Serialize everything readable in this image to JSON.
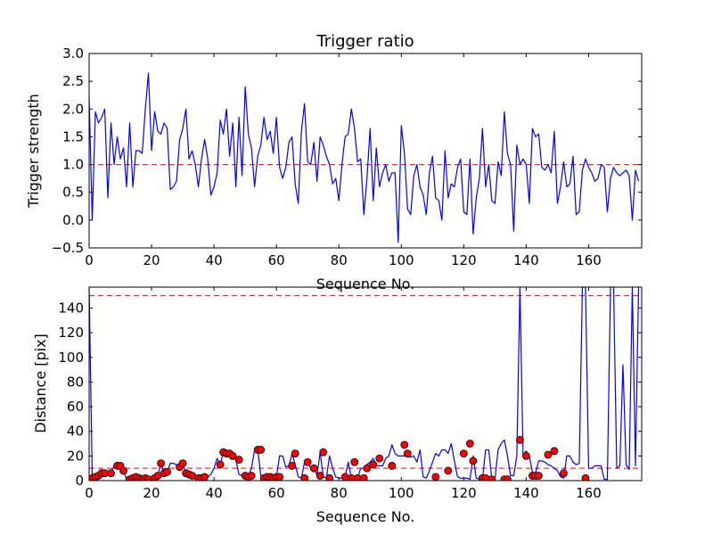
{
  "chart_data": [
    {
      "type": "line",
      "title": "Trigger ratio",
      "xlabel": "Sequence No.",
      "ylabel": "Trigger strength",
      "xlim": [
        0,
        177
      ],
      "ylim": [
        -0.5,
        3.0
      ],
      "xticks": [
        0,
        20,
        40,
        60,
        80,
        100,
        120,
        140,
        160
      ],
      "yticks": [
        -0.5,
        0.0,
        0.5,
        1.0,
        1.5,
        2.0,
        2.5,
        3.0
      ],
      "xtick_labels": [
        "0",
        "20",
        "40",
        "60",
        "80",
        "100",
        "120",
        "140",
        "160"
      ],
      "ytick_labels": [
        "−0.5",
        "0.0",
        "0.5",
        "1.0",
        "1.5",
        "2.0",
        "2.5",
        "3.0"
      ],
      "threshold": 1.0,
      "series": [
        {
          "name": "Trigger strength",
          "color": "#0000ff",
          "values": [
            2.2,
            0.0,
            1.95,
            1.75,
            1.85,
            2.0,
            0.4,
            1.75,
            1.0,
            1.5,
            1.1,
            1.3,
            0.6,
            1.75,
            0.6,
            1.25,
            1.25,
            1.2,
            2.0,
            2.65,
            1.25,
            1.95,
            1.6,
            1.55,
            1.75,
            1.65,
            0.55,
            0.6,
            0.7,
            1.45,
            1.65,
            2.0,
            1.1,
            1.25,
            1.0,
            0.6,
            1.1,
            1.45,
            1.1,
            0.45,
            0.6,
            0.85,
            1.8,
            1.55,
            2.0,
            1.15,
            1.75,
            0.6,
            1.85,
            0.8,
            2.4,
            1.55,
            1.3,
            0.6,
            1.15,
            1.35,
            1.85,
            1.45,
            1.6,
            1.2,
            1.85,
            0.95,
            0.75,
            0.95,
            1.4,
            1.5,
            0.65,
            0.3,
            1.6,
            2.1,
            1.05,
            1.0,
            1.4,
            0.7,
            1.5,
            1.35,
            1.15,
            1.0,
            0.65,
            0.75,
            0.35,
            1.0,
            1.5,
            1.55,
            2.0,
            1.65,
            1.05,
            1.1,
            0.1,
            0.75,
            1.65,
            0.35,
            1.3,
            0.6,
            0.85,
            1.0,
            0.7,
            0.85,
            0.85,
            -0.4,
            1.7,
            1.2,
            0.2,
            0.1,
            0.8,
            1.0,
            0.6,
            0.45,
            0.1,
            0.85,
            1.15,
            0.4,
            0.35,
            0.0,
            1.25,
            0.4,
            0.65,
            0.6,
            0.95,
            1.1,
            0.15,
            0.1,
            1.1,
            -0.25,
            0.4,
            0.75,
            1.65,
            0.6,
            1.0,
            0.35,
            0.3,
            1.05,
            0.8,
            1.95,
            1.2,
            1.0,
            -0.2,
            1.35,
            1.0,
            1.1,
            1.0,
            0.3,
            1.65,
            1.5,
            1.55,
            0.95,
            0.9,
            1.0,
            0.85,
            1.6,
            0.3,
            0.6,
            1.05,
            0.6,
            0.65,
            1.15,
            0.1,
            0.15,
            0.9,
            1.1,
            0.95,
            0.85,
            0.7,
            0.75,
            1.0,
            0.95,
            0.15,
            0.75,
            0.95,
            0.85,
            0.8,
            0.85,
            0.9,
            0.8,
            0.0,
            0.9,
            0.7
          ]
        }
      ]
    },
    {
      "type": "line",
      "title": "",
      "xlabel": "Sequence No.",
      "ylabel": "Distance [pix]",
      "xlim": [
        0,
        177
      ],
      "ylim": [
        0,
        157
      ],
      "xticks": [
        0,
        20,
        40,
        60,
        80,
        100,
        120,
        140,
        160
      ],
      "yticks": [
        0,
        20,
        40,
        60,
        80,
        100,
        120,
        140
      ],
      "xtick_labels": [
        "0",
        "20",
        "40",
        "60",
        "80",
        "100",
        "120",
        "140",
        "160"
      ],
      "ytick_labels": [
        "0",
        "20",
        "40",
        "60",
        "80",
        "100",
        "120",
        "140"
      ],
      "thresholds": [
        150,
        10
      ],
      "series": [
        {
          "name": "Distance",
          "color": "#0000ff",
          "values": [
            157,
            2,
            3,
            4,
            6,
            6,
            5,
            6,
            12,
            12,
            11,
            8,
            1,
            2,
            3,
            2,
            1,
            2,
            1,
            1,
            1,
            2,
            4,
            14,
            6,
            7,
            14,
            14,
            13,
            11,
            14,
            6,
            5,
            4,
            2,
            2,
            3,
            4,
            3,
            5,
            10,
            18,
            13,
            23,
            22,
            22,
            20,
            17,
            5,
            4,
            3,
            4,
            10,
            25,
            25,
            4,
            2,
            3,
            3,
            2,
            3,
            20,
            20,
            11,
            12,
            22,
            13,
            3,
            2,
            15,
            15,
            10,
            12,
            4,
            23,
            3,
            2,
            20,
            10,
            3,
            2,
            2,
            3,
            15,
            2,
            3,
            2,
            10,
            10,
            13,
            15,
            18,
            12,
            12,
            12,
            18,
            20,
            29,
            22,
            20,
            20,
            20,
            20,
            19,
            20,
            15,
            25,
            3,
            2,
            8,
            15,
            22,
            20,
            25,
            25,
            22,
            30,
            16,
            3,
            2,
            2,
            2,
            1,
            20,
            2,
            1,
            1,
            25,
            25,
            1,
            1,
            25,
            30,
            33,
            20,
            4,
            4,
            20,
            157,
            21,
            24,
            20,
            7,
            6,
            16,
            16,
            15,
            13,
            12,
            10,
            8,
            3,
            2,
            20,
            20,
            15,
            13,
            14,
            157,
            157,
            10,
            10,
            12,
            12,
            12,
            1,
            1,
            157,
            157,
            10,
            12,
            94,
            13,
            9,
            157,
            12,
            157
          ],
          "markers": [
            {
              "x": 1,
              "y": 2
            },
            {
              "x": 2,
              "y": 3
            },
            {
              "x": 3,
              "y": 4
            },
            {
              "x": 4,
              "y": 6
            },
            {
              "x": 5,
              "y": 6
            },
            {
              "x": 7,
              "y": 6
            },
            {
              "x": 9,
              "y": 12
            },
            {
              "x": 10,
              "y": 12
            },
            {
              "x": 11,
              "y": 8
            },
            {
              "x": 13,
              "y": 1
            },
            {
              "x": 14,
              "y": 2
            },
            {
              "x": 15,
              "y": 3
            },
            {
              "x": 16,
              "y": 2
            },
            {
              "x": 17,
              "y": 1
            },
            {
              "x": 18,
              "y": 2
            },
            {
              "x": 19,
              "y": 1
            },
            {
              "x": 21,
              "y": 2
            },
            {
              "x": 22,
              "y": 4
            },
            {
              "x": 23,
              "y": 14
            },
            {
              "x": 24,
              "y": 6
            },
            {
              "x": 25,
              "y": 7
            },
            {
              "x": 29,
              "y": 11
            },
            {
              "x": 30,
              "y": 14
            },
            {
              "x": 31,
              "y": 6
            },
            {
              "x": 32,
              "y": 5
            },
            {
              "x": 33,
              "y": 4
            },
            {
              "x": 35,
              "y": 2
            },
            {
              "x": 36,
              "y": 2
            },
            {
              "x": 37,
              "y": 3
            },
            {
              "x": 42,
              "y": 13
            },
            {
              "x": 43,
              "y": 23
            },
            {
              "x": 44,
              "y": 22
            },
            {
              "x": 45,
              "y": 22
            },
            {
              "x": 46,
              "y": 20
            },
            {
              "x": 48,
              "y": 17
            },
            {
              "x": 50,
              "y": 4
            },
            {
              "x": 51,
              "y": 3
            },
            {
              "x": 52,
              "y": 4
            },
            {
              "x": 54,
              "y": 25
            },
            {
              "x": 55,
              "y": 25
            },
            {
              "x": 56,
              "y": 2
            },
            {
              "x": 57,
              "y": 3
            },
            {
              "x": 58,
              "y": 3
            },
            {
              "x": 59,
              "y": 2
            },
            {
              "x": 60,
              "y": 3
            },
            {
              "x": 61,
              "y": 3
            },
            {
              "x": 65,
              "y": 12
            },
            {
              "x": 66,
              "y": 22
            },
            {
              "x": 69,
              "y": 2
            },
            {
              "x": 70,
              "y": 15
            },
            {
              "x": 72,
              "y": 10
            },
            {
              "x": 74,
              "y": 4
            },
            {
              "x": 75,
              "y": 23
            },
            {
              "x": 77,
              "y": 2
            },
            {
              "x": 82,
              "y": 3
            },
            {
              "x": 84,
              "y": 2
            },
            {
              "x": 85,
              "y": 15
            },
            {
              "x": 86,
              "y": 2
            },
            {
              "x": 88,
              "y": 2
            },
            {
              "x": 89,
              "y": 10
            },
            {
              "x": 91,
              "y": 13
            },
            {
              "x": 93,
              "y": 18
            },
            {
              "x": 97,
              "y": 12
            },
            {
              "x": 101,
              "y": 29
            },
            {
              "x": 102,
              "y": 22
            },
            {
              "x": 111,
              "y": 3
            },
            {
              "x": 115,
              "y": 8
            },
            {
              "x": 120,
              "y": 22
            },
            {
              "x": 122,
              "y": 30
            },
            {
              "x": 123,
              "y": 16
            },
            {
              "x": 126,
              "y": 2
            },
            {
              "x": 127,
              "y": 2
            },
            {
              "x": 129,
              "y": 1
            },
            {
              "x": 133,
              "y": 1
            },
            {
              "x": 134,
              "y": 1
            },
            {
              "x": 138,
              "y": 33
            },
            {
              "x": 140,
              "y": 20
            },
            {
              "x": 142,
              "y": 4
            },
            {
              "x": 143,
              "y": 4
            },
            {
              "x": 144,
              "y": 4
            },
            {
              "x": 147,
              "y": 21
            },
            {
              "x": 149,
              "y": 24
            },
            {
              "x": 152,
              "y": 6
            },
            {
              "x": 159,
              "y": 2
            }
          ]
        }
      ]
    }
  ]
}
